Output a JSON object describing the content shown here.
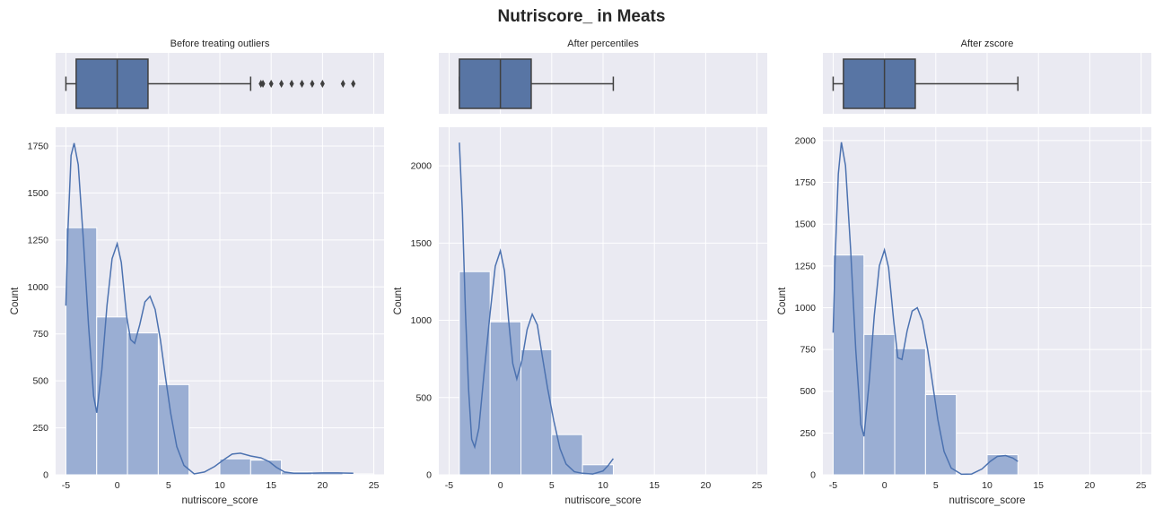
{
  "figure_title": "Nutriscore_ in Meats",
  "colors": {
    "panel_bg": "#eaeaf2",
    "grid": "#ffffff",
    "box_fill": "#5875a4",
    "bar_fill": "#9aaed3",
    "kde_line": "#4c72b0",
    "text": "#262626",
    "whisker": "#3f3f3f"
  },
  "chart_data": [
    {
      "type": "bar",
      "subtitle": "Before treating outliers",
      "xlabel": "nutriscore_score",
      "ylabel": "Count",
      "xlim": [
        -6,
        26
      ],
      "ylim": [
        0,
        1850
      ],
      "xticks": [
        "-5",
        "0",
        "5",
        "10",
        "15",
        "20",
        "25"
      ],
      "yticks": [
        "0",
        "250",
        "500",
        "750",
        "1000",
        "1250",
        "1500",
        "1750"
      ],
      "bins": [
        {
          "range": [
            -5,
            -2
          ],
          "count": 1315
        },
        {
          "range": [
            -2,
            1
          ],
          "count": 840
        },
        {
          "range": [
            1,
            4
          ],
          "count": 755
        },
        {
          "range": [
            4,
            7
          ],
          "count": 480
        },
        {
          "range": [
            7,
            10
          ],
          "count": 0
        },
        {
          "range": [
            10,
            13
          ],
          "count": 85
        },
        {
          "range": [
            13,
            16
          ],
          "count": 78
        },
        {
          "range": [
            16,
            19
          ],
          "count": 15
        },
        {
          "range": [
            19,
            22
          ],
          "count": 10
        },
        {
          "range": [
            22,
            25
          ],
          "count": 5
        }
      ],
      "kde": [
        [
          -5,
          900
        ],
        [
          -4.8,
          1300
        ],
        [
          -4.5,
          1700
        ],
        [
          -4.2,
          1765
        ],
        [
          -3.8,
          1650
        ],
        [
          -3.3,
          1250
        ],
        [
          -2.8,
          800
        ],
        [
          -2.3,
          420
        ],
        [
          -2,
          330
        ],
        [
          -1.5,
          560
        ],
        [
          -1,
          900
        ],
        [
          -0.5,
          1150
        ],
        [
          0,
          1230
        ],
        [
          0.4,
          1130
        ],
        [
          0.9,
          850
        ],
        [
          1.3,
          720
        ],
        [
          1.7,
          700
        ],
        [
          2.2,
          800
        ],
        [
          2.7,
          920
        ],
        [
          3.2,
          950
        ],
        [
          3.7,
          880
        ],
        [
          4.2,
          720
        ],
        [
          4.7,
          520
        ],
        [
          5.2,
          330
        ],
        [
          5.8,
          150
        ],
        [
          6.5,
          50
        ],
        [
          7.5,
          5
        ],
        [
          8.5,
          15
        ],
        [
          9.5,
          45
        ],
        [
          10.5,
          85
        ],
        [
          11.2,
          110
        ],
        [
          12,
          115
        ],
        [
          13,
          100
        ],
        [
          14,
          90
        ],
        [
          14.8,
          70
        ],
        [
          15.5,
          40
        ],
        [
          16.3,
          15
        ],
        [
          17.2,
          8
        ],
        [
          18.5,
          8
        ],
        [
          20,
          10
        ],
        [
          21.5,
          10
        ],
        [
          23,
          8
        ]
      ],
      "box": {
        "min": -5,
        "q1": -4,
        "median": 0,
        "q3": 3,
        "max": 13
      },
      "outliers": [
        14,
        14.2,
        15,
        16,
        17,
        18,
        19,
        20,
        22,
        23
      ]
    },
    {
      "type": "bar",
      "subtitle": "After percentiles",
      "xlabel": "nutriscore_score",
      "ylabel": "Count",
      "xlim": [
        -6,
        26
      ],
      "ylim": [
        0,
        2250
      ],
      "xticks": [
        "-5",
        "0",
        "5",
        "10",
        "15",
        "20",
        "25"
      ],
      "yticks": [
        "0",
        "500",
        "1000",
        "1500",
        "2000"
      ],
      "bins": [
        {
          "range": [
            -4,
            -1
          ],
          "count": 1315
        },
        {
          "range": [
            -1,
            2
          ],
          "count": 990
        },
        {
          "range": [
            2,
            5
          ],
          "count": 810
        },
        {
          "range": [
            5,
            8
          ],
          "count": 260
        },
        {
          "range": [
            8,
            11
          ],
          "count": 65
        }
      ],
      "kde": [
        [
          -4,
          2150
        ],
        [
          -3.7,
          1700
        ],
        [
          -3.4,
          1050
        ],
        [
          -3.1,
          550
        ],
        [
          -2.8,
          230
        ],
        [
          -2.5,
          180
        ],
        [
          -2.1,
          300
        ],
        [
          -1.6,
          650
        ],
        [
          -1,
          1050
        ],
        [
          -0.5,
          1350
        ],
        [
          0,
          1450
        ],
        [
          0.4,
          1320
        ],
        [
          0.8,
          1000
        ],
        [
          1.2,
          720
        ],
        [
          1.6,
          620
        ],
        [
          2.1,
          740
        ],
        [
          2.6,
          940
        ],
        [
          3.1,
          1040
        ],
        [
          3.6,
          970
        ],
        [
          4.1,
          760
        ],
        [
          4.6,
          560
        ],
        [
          5.2,
          350
        ],
        [
          5.8,
          170
        ],
        [
          6.4,
          70
        ],
        [
          7.2,
          20
        ],
        [
          8,
          10
        ],
        [
          9,
          5
        ],
        [
          10,
          25
        ],
        [
          10.5,
          60
        ],
        [
          11,
          105
        ]
      ],
      "box": {
        "min": -4,
        "q1": -4,
        "median": 0,
        "q3": 3,
        "max": 11
      },
      "outliers": []
    },
    {
      "type": "bar",
      "subtitle": "After zscore",
      "xlabel": "nutriscore_score",
      "ylabel": "Count",
      "xlim": [
        -6,
        26
      ],
      "ylim": [
        0,
        2080
      ],
      "xticks": [
        "-5",
        "0",
        "5",
        "10",
        "15",
        "20",
        "25"
      ],
      "yticks": [
        "0",
        "250",
        "500",
        "750",
        "1000",
        "1250",
        "1500",
        "1750",
        "2000"
      ],
      "bins": [
        {
          "range": [
            -5,
            -2
          ],
          "count": 1315
        },
        {
          "range": [
            -2,
            1
          ],
          "count": 840
        },
        {
          "range": [
            1,
            4
          ],
          "count": 755
        },
        {
          "range": [
            4,
            7
          ],
          "count": 480
        },
        {
          "range": [
            7,
            10
          ],
          "count": 0
        },
        {
          "range": [
            10,
            13
          ],
          "count": 120
        }
      ],
      "kde": [
        [
          -5,
          850
        ],
        [
          -4.8,
          1300
        ],
        [
          -4.5,
          1800
        ],
        [
          -4.2,
          1990
        ],
        [
          -3.8,
          1850
        ],
        [
          -3.3,
          1350
        ],
        [
          -2.8,
          750
        ],
        [
          -2.3,
          300
        ],
        [
          -2,
          230
        ],
        [
          -1.5,
          550
        ],
        [
          -1,
          950
        ],
        [
          -0.5,
          1250
        ],
        [
          0,
          1345
        ],
        [
          0.4,
          1240
        ],
        [
          0.9,
          920
        ],
        [
          1.3,
          700
        ],
        [
          1.7,
          690
        ],
        [
          2.2,
          860
        ],
        [
          2.7,
          980
        ],
        [
          3.2,
          1000
        ],
        [
          3.7,
          920
        ],
        [
          4.2,
          750
        ],
        [
          4.7,
          540
        ],
        [
          5.2,
          330
        ],
        [
          5.8,
          140
        ],
        [
          6.5,
          40
        ],
        [
          7.5,
          3
        ],
        [
          8.5,
          5
        ],
        [
          9.5,
          35
        ],
        [
          10.3,
          80
        ],
        [
          11,
          110
        ],
        [
          11.8,
          115
        ],
        [
          12.5,
          100
        ],
        [
          13,
          80
        ]
      ],
      "box": {
        "min": -5,
        "q1": -4,
        "median": 0,
        "q3": 3,
        "max": 13
      },
      "outliers": []
    }
  ]
}
